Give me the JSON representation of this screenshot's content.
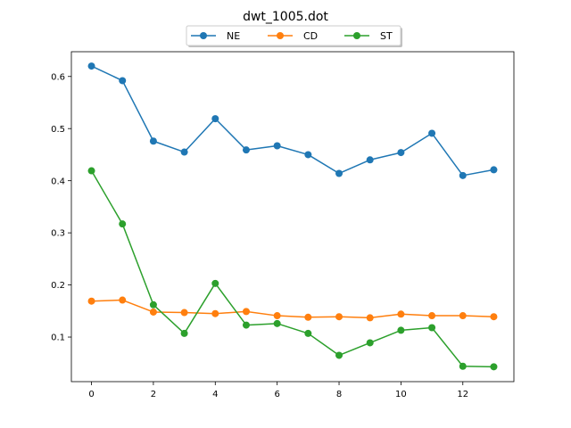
{
  "chart_data": {
    "type": "line",
    "title": "dwt_1005.dot",
    "xlabel": "",
    "ylabel": "",
    "x": [
      0,
      1,
      2,
      3,
      4,
      5,
      6,
      7,
      8,
      9,
      10,
      11,
      12,
      13
    ],
    "xlim": [
      -0.65,
      13.65
    ],
    "ylim": [
      0.0145,
      0.6475
    ],
    "xticks": [
      0,
      2,
      4,
      6,
      8,
      10,
      12
    ],
    "yticks": [
      0.1,
      0.2,
      0.3,
      0.4,
      0.5,
      0.6
    ],
    "xtick_labels": [
      "0",
      "2",
      "4",
      "6",
      "8",
      "10",
      "12"
    ],
    "ytick_labels": [
      "0.1",
      "0.2",
      "0.3",
      "0.4",
      "0.5",
      "0.6"
    ],
    "grid": false,
    "legend_position": "top-center",
    "series": [
      {
        "name": "NE",
        "color": "#1f77b4",
        "values": [
          0.62,
          0.592,
          0.476,
          0.455,
          0.519,
          0.459,
          0.467,
          0.45,
          0.414,
          0.44,
          0.454,
          0.491,
          0.41,
          0.421
        ]
      },
      {
        "name": "CD",
        "color": "#ff7f0e",
        "values": [
          0.169,
          0.171,
          0.148,
          0.147,
          0.145,
          0.149,
          0.141,
          0.138,
          0.139,
          0.137,
          0.144,
          0.141,
          0.141,
          0.139
        ]
      },
      {
        "name": "ST",
        "color": "#2ca02c",
        "values": [
          0.419,
          0.317,
          0.162,
          0.107,
          0.203,
          0.123,
          0.126,
          0.107,
          0.065,
          0.089,
          0.113,
          0.118,
          0.044,
          0.043
        ]
      }
    ]
  }
}
